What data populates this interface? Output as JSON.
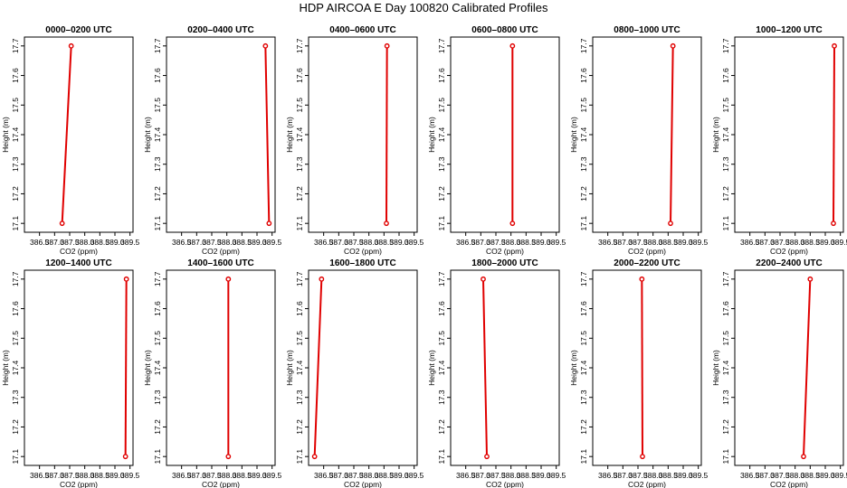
{
  "figure": {
    "title": "HDP AIRCOA E  Day 100820  Calibrated Profiles"
  },
  "style": {
    "line_color": "#e00000",
    "point_color": "#e00000",
    "axis_color": "#000000"
  },
  "chart_data": [
    {
      "type": "line",
      "title": "0000–0200 UTC",
      "xlabel": "CO2 (ppm)",
      "ylabel": "Height (m)",
      "xlim": [
        386.0,
        389.6
      ],
      "ylim": [
        17.07,
        17.73
      ],
      "xticks": [
        "386.5",
        "387.0",
        "387.5",
        "388.0",
        "388.5",
        "389.0",
        "389.5"
      ],
      "yticks": [
        "17.1",
        "17.2",
        "17.3",
        "17.4",
        "17.5",
        "17.6",
        "17.7"
      ],
      "x": [
        387.25,
        387.55
      ],
      "y": [
        17.1,
        17.7
      ]
    },
    {
      "type": "line",
      "title": "0200–0400 UTC",
      "xlabel": "CO2 (ppm)",
      "ylabel": "Height (m)",
      "xlim": [
        386.0,
        389.6
      ],
      "ylim": [
        17.07,
        17.73
      ],
      "xticks": [
        "386.5",
        "387.0",
        "387.5",
        "388.0",
        "388.5",
        "389.0",
        "389.5"
      ],
      "yticks": [
        "17.1",
        "17.2",
        "17.3",
        "17.4",
        "17.5",
        "17.6",
        "17.7"
      ],
      "x": [
        389.4,
        389.28
      ],
      "y": [
        17.1,
        17.7
      ]
    },
    {
      "type": "line",
      "title": "0400–0600 UTC",
      "xlabel": "CO2 (ppm)",
      "ylabel": "Height (m)",
      "xlim": [
        386.0,
        389.6
      ],
      "ylim": [
        17.07,
        17.73
      ],
      "xticks": [
        "386.5",
        "387.0",
        "387.5",
        "388.0",
        "388.5",
        "389.0",
        "389.5"
      ],
      "yticks": [
        "17.1",
        "17.2",
        "17.3",
        "17.4",
        "17.5",
        "17.6",
        "17.7"
      ],
      "x": [
        388.58,
        388.6
      ],
      "y": [
        17.1,
        17.7
      ]
    },
    {
      "type": "line",
      "title": "0600–0800 UTC",
      "xlabel": "CO2 (ppm)",
      "ylabel": "Height (m)",
      "xlim": [
        386.0,
        389.6
      ],
      "ylim": [
        17.07,
        17.73
      ],
      "xticks": [
        "386.5",
        "387.0",
        "387.5",
        "388.0",
        "388.5",
        "389.0",
        "389.5"
      ],
      "yticks": [
        "17.1",
        "17.2",
        "17.3",
        "17.4",
        "17.5",
        "17.6",
        "17.7"
      ],
      "x": [
        388.05,
        388.05
      ],
      "y": [
        17.1,
        17.7
      ]
    },
    {
      "type": "line",
      "title": "0800–1000 UTC",
      "xlabel": "CO2 (ppm)",
      "ylabel": "Height (m)",
      "xlim": [
        386.0,
        389.6
      ],
      "ylim": [
        17.07,
        17.73
      ],
      "xticks": [
        "386.5",
        "387.0",
        "387.5",
        "388.0",
        "388.5",
        "389.0",
        "389.5"
      ],
      "yticks": [
        "17.1",
        "17.2",
        "17.3",
        "17.4",
        "17.5",
        "17.6",
        "17.7"
      ],
      "x": [
        388.58,
        388.66
      ],
      "y": [
        17.1,
        17.7
      ]
    },
    {
      "type": "line",
      "title": "1000–1200 UTC",
      "xlabel": "CO2 (ppm)",
      "ylabel": "Height (m)",
      "xlim": [
        386.0,
        389.6
      ],
      "ylim": [
        17.07,
        17.73
      ],
      "xticks": [
        "386.5",
        "387.0",
        "387.5",
        "388.0",
        "388.5",
        "389.0",
        "389.5"
      ],
      "yticks": [
        "17.1",
        "17.2",
        "17.3",
        "17.4",
        "17.5",
        "17.6",
        "17.7"
      ],
      "x": [
        389.27,
        389.3
      ],
      "y": [
        17.1,
        17.7
      ]
    },
    {
      "type": "line",
      "title": "1200–1400 UTC",
      "xlabel": "CO2 (ppm)",
      "ylabel": "Height (m)",
      "xlim": [
        386.0,
        389.6
      ],
      "ylim": [
        17.07,
        17.73
      ],
      "xticks": [
        "386.5",
        "387.0",
        "387.5",
        "388.0",
        "388.5",
        "389.0",
        "389.5"
      ],
      "yticks": [
        "17.1",
        "17.2",
        "17.3",
        "17.4",
        "17.5",
        "17.6",
        "17.7"
      ],
      "x": [
        389.35,
        389.38
      ],
      "y": [
        17.1,
        17.7
      ]
    },
    {
      "type": "line",
      "title": "1400–1600 UTC",
      "xlabel": "CO2 (ppm)",
      "ylabel": "Height (m)",
      "xlim": [
        386.0,
        389.6
      ],
      "ylim": [
        17.07,
        17.73
      ],
      "xticks": [
        "386.5",
        "387.0",
        "387.5",
        "388.0",
        "388.5",
        "389.0",
        "389.5"
      ],
      "yticks": [
        "17.1",
        "17.2",
        "17.3",
        "17.4",
        "17.5",
        "17.6",
        "17.7"
      ],
      "x": [
        388.05,
        388.05
      ],
      "y": [
        17.1,
        17.7
      ]
    },
    {
      "type": "line",
      "title": "1600–1800 UTC",
      "xlabel": "CO2 (ppm)",
      "ylabel": "Height (m)",
      "xlim": [
        386.0,
        389.6
      ],
      "ylim": [
        17.07,
        17.73
      ],
      "xticks": [
        "386.5",
        "387.0",
        "387.5",
        "388.0",
        "388.5",
        "389.0",
        "389.5"
      ],
      "yticks": [
        "17.1",
        "17.2",
        "17.3",
        "17.4",
        "17.5",
        "17.6",
        "17.7"
      ],
      "x": [
        386.2,
        386.43
      ],
      "y": [
        17.1,
        17.7
      ]
    },
    {
      "type": "line",
      "title": "1800–2000 UTC",
      "xlabel": "CO2 (ppm)",
      "ylabel": "Height (m)",
      "xlim": [
        386.0,
        389.6
      ],
      "ylim": [
        17.07,
        17.73
      ],
      "xticks": [
        "386.5",
        "387.0",
        "387.5",
        "388.0",
        "388.5",
        "389.0",
        "389.5"
      ],
      "yticks": [
        "17.1",
        "17.2",
        "17.3",
        "17.4",
        "17.5",
        "17.6",
        "17.7"
      ],
      "x": [
        387.2,
        387.08
      ],
      "y": [
        17.1,
        17.7
      ]
    },
    {
      "type": "line",
      "title": "2000–2200 UTC",
      "xlabel": "CO2 (ppm)",
      "ylabel": "Height (m)",
      "xlim": [
        386.0,
        389.6
      ],
      "ylim": [
        17.07,
        17.73
      ],
      "xticks": [
        "386.5",
        "387.0",
        "387.5",
        "388.0",
        "388.5",
        "389.0",
        "389.5"
      ],
      "yticks": [
        "17.1",
        "17.2",
        "17.3",
        "17.4",
        "17.5",
        "17.6",
        "17.7"
      ],
      "x": [
        387.65,
        387.63
      ],
      "y": [
        17.1,
        17.7
      ]
    },
    {
      "type": "line",
      "title": "2200–2400 UTC",
      "xlabel": "CO2 (ppm)",
      "ylabel": "Height (m)",
      "xlim": [
        386.0,
        389.6
      ],
      "ylim": [
        17.07,
        17.73
      ],
      "xticks": [
        "386.5",
        "387.0",
        "387.5",
        "388.0",
        "388.5",
        "389.0",
        "389.5"
      ],
      "yticks": [
        "17.1",
        "17.2",
        "17.3",
        "17.4",
        "17.5",
        "17.6",
        "17.7"
      ],
      "x": [
        388.28,
        388.5
      ],
      "y": [
        17.1,
        17.7
      ]
    }
  ]
}
